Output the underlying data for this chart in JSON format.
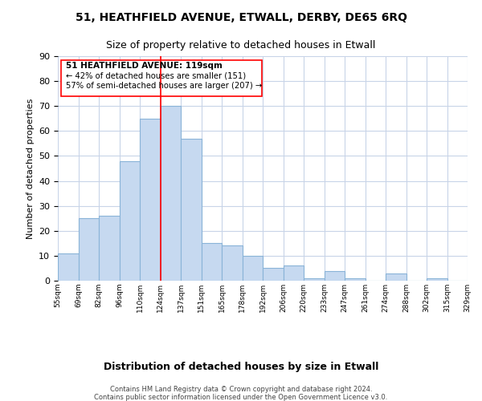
{
  "title": "51, HEATHFIELD AVENUE, ETWALL, DERBY, DE65 6RQ",
  "subtitle": "Size of property relative to detached houses in Etwall",
  "xlabel": "Distribution of detached houses by size in Etwall",
  "ylabel": "Number of detached properties",
  "bin_labels": [
    "55sqm",
    "69sqm",
    "82sqm",
    "96sqm",
    "110sqm",
    "124sqm",
    "137sqm",
    "151sqm",
    "165sqm",
    "178sqm",
    "192sqm",
    "206sqm",
    "220sqm",
    "233sqm",
    "247sqm",
    "261sqm",
    "274sqm",
    "288sqm",
    "302sqm",
    "315sqm",
    "329sqm"
  ],
  "bar_heights": [
    11,
    25,
    26,
    48,
    65,
    70,
    57,
    15,
    14,
    10,
    5,
    6,
    1,
    4,
    1,
    0,
    3,
    0,
    1,
    0
  ],
  "bar_color": "#c6d9f0",
  "bar_edge_color": "#8ab4d8",
  "property_line_label": "51 HEATHFIELD AVENUE: 119sqm",
  "annotation_smaller": "← 42% of detached houses are smaller (151)",
  "annotation_larger": "57% of semi-detached houses are larger (207) →",
  "ylim": [
    0,
    90
  ],
  "yticks": [
    0,
    10,
    20,
    30,
    40,
    50,
    60,
    70,
    80,
    90
  ],
  "footer_line1": "Contains HM Land Registry data © Crown copyright and database right 2024.",
  "footer_line2": "Contains public sector information licensed under the Open Government Licence v3.0.",
  "background_color": "#ffffff",
  "grid_color": "#c8d4e8"
}
